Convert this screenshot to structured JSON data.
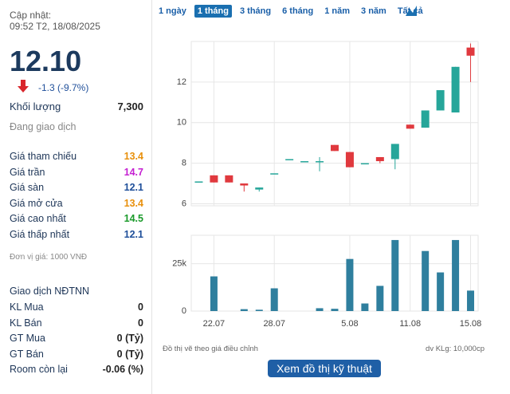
{
  "sidebar": {
    "updated_label": "Cập nhật:",
    "updated_time": "09:52 T2, 18/08/2025",
    "price": "12.10",
    "change": "-1.3 (-9.7%)",
    "volume_label": "Khối lượng",
    "volume": "7,300",
    "status": "Đang giao dịch",
    "prices": [
      {
        "label": "Giá tham chiếu",
        "value": "13.4",
        "color": "#e8900c"
      },
      {
        "label": "Giá trần",
        "value": "14.7",
        "color": "#c41fd1"
      },
      {
        "label": "Giá sàn",
        "value": "12.1",
        "color": "#1f4f9a"
      },
      {
        "label": "Giá mở cửa",
        "value": "13.4",
        "color": "#e8900c"
      },
      {
        "label": "Giá cao nhất",
        "value": "14.5",
        "color": "#1a9a2a"
      },
      {
        "label": "Giá thấp nhất",
        "value": "12.1",
        "color": "#1f4f9a"
      }
    ],
    "unit_note": "Đơn vị giá: 1000 VNĐ",
    "foreign_title": "Giao dịch NĐTNN",
    "foreign": [
      {
        "label": "KL Mua",
        "value": "0"
      },
      {
        "label": "KL Bán",
        "value": "0"
      },
      {
        "label": "GT Mua",
        "value": "0 (Tỷ)"
      },
      {
        "label": "GT Bán",
        "value": "0 (Tỷ)"
      },
      {
        "label": "Room còn lại",
        "value": "-0.06 (%)"
      }
    ]
  },
  "tabs": {
    "items": [
      "1 ngày",
      "1 tháng",
      "3 tháng",
      "6 tháng",
      "1 năm",
      "3 năm",
      "Tất cả"
    ],
    "active": 1
  },
  "chart_data": [
    {
      "type": "candlestick",
      "open": [
        7.1,
        7.4,
        7.4,
        7.0,
        6.7,
        7.5,
        8.2,
        8.1,
        8.1,
        8.9,
        8.55,
        8.0,
        8.3,
        8.2,
        9.9,
        9.75,
        10.6,
        10.5,
        13.7
      ],
      "high": [
        7.1,
        7.4,
        7.4,
        7.0,
        6.8,
        7.5,
        8.2,
        8.1,
        8.3,
        8.9,
        8.55,
        8.0,
        8.3,
        8.95,
        9.9,
        10.6,
        11.6,
        12.75,
        13.9
      ],
      "low": [
        7.1,
        7.05,
        7.05,
        6.6,
        6.6,
        7.5,
        8.2,
        8.1,
        7.6,
        8.6,
        7.8,
        8.0,
        8.0,
        7.7,
        9.7,
        9.75,
        10.6,
        10.5,
        12.0
      ],
      "close": [
        7.1,
        7.05,
        7.05,
        6.9,
        6.8,
        7.5,
        8.2,
        8.1,
        8.1,
        8.6,
        7.8,
        8.0,
        8.1,
        8.95,
        9.7,
        10.6,
        11.6,
        12.75,
        13.3
      ],
      "up_color": "#26a69a",
      "down_color": "#e0393e",
      "ylim": [
        5.9,
        14.0
      ],
      "yticks": [
        6,
        8,
        10,
        12
      ],
      "grid": true
    },
    {
      "type": "bar",
      "categories": [
        null,
        "22.07",
        null,
        null,
        null,
        "28.07",
        null,
        null,
        null,
        null,
        "5.08",
        null,
        null,
        null,
        "11.08",
        null,
        null,
        null,
        "15.08"
      ],
      "values": [
        0,
        18300,
        0,
        1000,
        700,
        12000,
        0,
        0,
        1500,
        1200,
        27500,
        4000,
        13300,
        37500,
        0,
        31700,
        20400,
        37500,
        10800
      ],
      "color": "#2f7f9e",
      "ylim": [
        0,
        40000
      ],
      "yticks": [
        0,
        {
          "value": 25000,
          "label": "25k"
        }
      ],
      "grid": true
    }
  ],
  "footer": {
    "note": "Đồ thị vẽ theo giá điều chỉnh",
    "unit": "dv KLg: 10,000cp",
    "button": "Xem đồ thị kỹ thuật"
  }
}
